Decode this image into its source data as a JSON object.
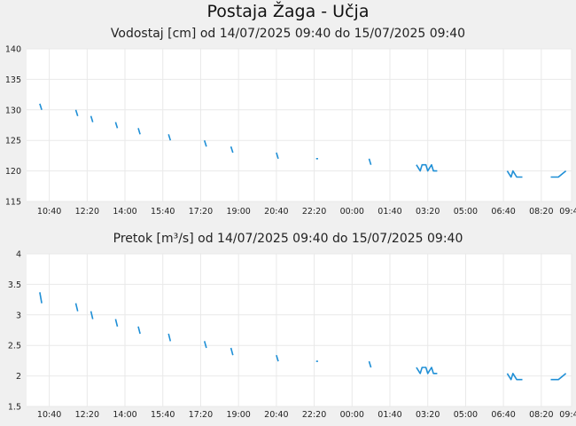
{
  "page": {
    "title": "Postaja Žaga - Učja"
  },
  "chart_data": [
    {
      "type": "line",
      "title": "Vodostaj [cm] od 14/07/2025 09:40 do 15/07/2025 09:40",
      "xlabel": "",
      "ylabel": "",
      "ylim": [
        115,
        140
      ],
      "yticks": [
        "115",
        "120",
        "125",
        "130",
        "135",
        "140"
      ],
      "xticks": [
        "10:40",
        "12:20",
        "14:00",
        "15:40",
        "17:20",
        "19:00",
        "20:40",
        "22:20",
        "00:00",
        "01:40",
        "03:20",
        "05:00",
        "06:40",
        "08:20",
        "09:40"
      ],
      "grid": true,
      "color": "#1f8fd6",
      "series": [
        {
          "x": [
            "09:40",
            "10:15",
            "10:20",
            "11:50",
            "11:55",
            "12:30",
            "12:35",
            "13:35",
            "13:40",
            "14:35",
            "14:40",
            "15:55",
            "16:00",
            "17:30",
            "17:35",
            "18:40",
            "18:45",
            "20:40",
            "20:45",
            "22:25",
            "22:30",
            "00:45",
            "00:50",
            "02:50",
            "03:00",
            "03:05",
            "03:15",
            "03:20",
            "03:30",
            "03:35",
            "03:45",
            "06:50",
            "07:00",
            "07:05",
            "07:15",
            "07:30",
            "08:10",
            "08:45",
            "08:55",
            "09:05",
            "09:25"
          ],
          "y": [
            131,
            131,
            130,
            130,
            129,
            129,
            128,
            128,
            127,
            127,
            126,
            126,
            125,
            125,
            124,
            124,
            123,
            123,
            122,
            122,
            122,
            122,
            121,
            121,
            120,
            121,
            121,
            120,
            121,
            120,
            120,
            120,
            119,
            120,
            119,
            119,
            119,
            119,
            119,
            119,
            120
          ]
        }
      ]
    },
    {
      "type": "line",
      "title": "Pretok [m³/s] od 14/07/2025 09:40 do 15/07/2025 09:40",
      "xlabel": "",
      "ylabel": "",
      "ylim": [
        1.5,
        4
      ],
      "yticks": [
        "1.5",
        "2",
        "2.5",
        "3",
        "3.5",
        "4"
      ],
      "xticks": [
        "10:40",
        "12:20",
        "14:00",
        "15:40",
        "17:20",
        "19:00",
        "20:40",
        "22:20",
        "00:00",
        "01:40",
        "03:20",
        "05:00",
        "06:40",
        "08:20",
        "09:40"
      ],
      "grid": true,
      "color": "#1f8fd6",
      "series": [
        {
          "x": [
            "09:40",
            "10:15",
            "10:20",
            "11:50",
            "11:55",
            "12:30",
            "12:35",
            "13:35",
            "13:40",
            "14:35",
            "14:40",
            "15:55",
            "16:00",
            "17:30",
            "17:35",
            "18:40",
            "18:45",
            "20:40",
            "20:45",
            "22:25",
            "22:30",
            "00:45",
            "00:50",
            "02:50",
            "03:00",
            "03:05",
            "03:15",
            "03:20",
            "03:30",
            "03:35",
            "03:45",
            "06:50",
            "07:00",
            "07:05",
            "07:15",
            "07:30",
            "08:10",
            "08:45",
            "08:55",
            "09:05",
            "09:25"
          ],
          "y": [
            3.37,
            3.37,
            3.19,
            3.19,
            3.06,
            3.06,
            2.93,
            2.93,
            2.81,
            2.81,
            2.69,
            2.69,
            2.57,
            2.57,
            2.46,
            2.46,
            2.34,
            2.34,
            2.24,
            2.24,
            2.24,
            2.24,
            2.14,
            2.14,
            2.04,
            2.14,
            2.14,
            2.04,
            2.14,
            2.04,
            2.04,
            2.04,
            1.94,
            2.04,
            1.94,
            1.94,
            1.94,
            1.94,
            1.94,
            1.94,
            2.04
          ]
        }
      ]
    }
  ]
}
